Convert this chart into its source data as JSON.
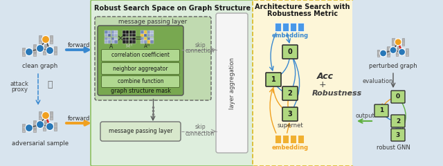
{
  "fig_width": 6.4,
  "fig_height": 2.4,
  "dpi": 100,
  "bg_color": "#e0e4e8",
  "section1_bg": "#d8e4ee",
  "section2_bg": "#deeedd",
  "section3_bg": "#fdf6d8",
  "section2_border": "#8ec060",
  "section3_border": "#d8b820",
  "node_blue": "#2878b8",
  "node_blue2": "#4090c8",
  "node_yellow": "#f0a020",
  "edge_red": "#dd2020",
  "edge_dark": "#383838",
  "arrow_blue": "#3888d0",
  "arrow_orange": "#f0a020",
  "arrow_green": "#60b040",
  "arrow_gray": "#888888",
  "label_items": [
    "correlation coefficient",
    "neighbor aggregator",
    "combine function"
  ],
  "label_item_bg": "#b0d890",
  "green_mask_bg": "#78a850",
  "green_mask_border": "#505050",
  "msg_box_bg": "#c0dab0",
  "msg_box_border": "#606060",
  "bottom_msg_bg": "#d8e8cc",
  "layer_agg_bg": "#f5f5f5",
  "layer_agg_border": "#aaaaaa",
  "supernet_box_bg": "#b0d880",
  "supernet_box_border": "#303030",
  "emb_bar_blue": "#4898e8",
  "emb_bar_yellow": "#f0b030",
  "skip_color": "#999999",
  "title1": "Robust Search Space on Graph Structure",
  "title2_1": "Architecture Search with",
  "title2_2": "Robustness Metric"
}
